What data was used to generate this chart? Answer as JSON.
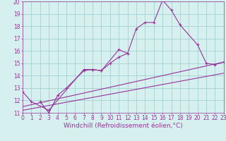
{
  "background_color": "#d6f0f0",
  "line_color": "#993399",
  "grid_color": "#99cccc",
  "xlabel": "Windchill (Refroidissement éolien,°C)",
  "xlabel_fontsize": 6.5,
  "tick_fontsize": 5.5,
  "xmin": 0,
  "xmax": 23,
  "ymin": 11,
  "ymax": 20,
  "series": [
    {
      "x": [
        0,
        1,
        3,
        7,
        8,
        9,
        11,
        12,
        13,
        14,
        15,
        16,
        17,
        18,
        20,
        21,
        22,
        23
      ],
      "y": [
        12.7,
        11.9,
        11.2,
        14.5,
        14.5,
        14.4,
        16.1,
        15.8,
        17.8,
        18.3,
        18.3,
        20.1,
        19.3,
        18.1,
        16.5,
        15.0,
        14.9,
        15.1
      ]
    },
    {
      "x": [
        2,
        3,
        4,
        5,
        7,
        8,
        9,
        10,
        11,
        12
      ],
      "y": [
        11.9,
        11.0,
        12.4,
        13.0,
        14.4,
        14.5,
        14.4,
        15.0,
        15.5,
        15.8
      ]
    },
    {
      "x": [
        0,
        23
      ],
      "y": [
        11.5,
        15.1
      ]
    },
    {
      "x": [
        0,
        23
      ],
      "y": [
        11.2,
        14.2
      ]
    }
  ]
}
